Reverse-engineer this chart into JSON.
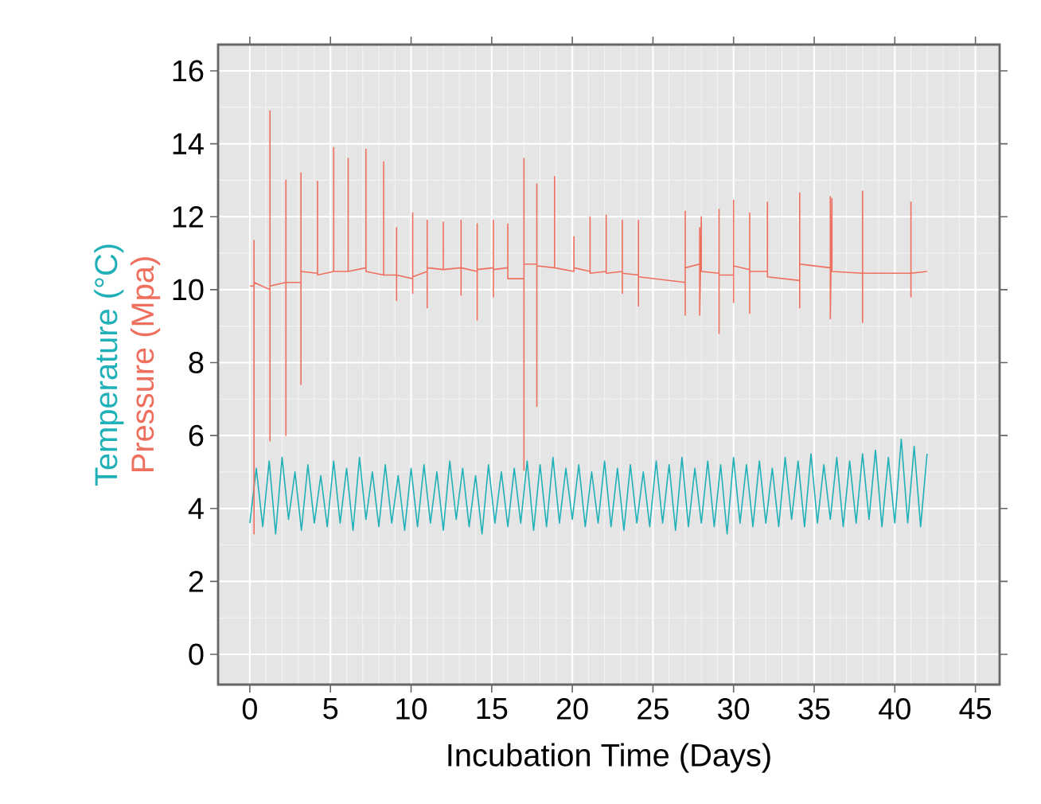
{
  "chart_data": {
    "type": "line",
    "xlabel": "Incubation Time (Days)",
    "xlim": [
      -1.97,
      46.5
    ],
    "ylim": [
      -0.83,
      16.72
    ],
    "xticks": [
      0,
      5,
      10,
      15,
      20,
      25,
      30,
      35,
      40,
      45
    ],
    "yticks": [
      0,
      2,
      4,
      6,
      8,
      10,
      12,
      14,
      16
    ],
    "grid": true,
    "series": [
      {
        "name": "Temperature (°C)",
        "color": "#20b0b8",
        "x": [
          0,
          0.4,
          0.8,
          1.2,
          1.6,
          2.0,
          2.4,
          2.8,
          3.2,
          3.6,
          4.0,
          4.4,
          4.8,
          5.2,
          5.6,
          6.0,
          6.4,
          6.8,
          7.2,
          7.6,
          8.0,
          8.4,
          8.8,
          9.2,
          9.6,
          10.0,
          10.4,
          10.8,
          11.2,
          11.6,
          12.0,
          12.4,
          12.8,
          13.2,
          13.6,
          14.0,
          14.4,
          14.8,
          15.2,
          15.6,
          16.0,
          16.4,
          16.8,
          17.2,
          17.6,
          18.0,
          18.4,
          18.8,
          19.2,
          19.6,
          20.0,
          20.4,
          20.8,
          21.2,
          21.6,
          22.0,
          22.4,
          22.8,
          23.2,
          23.6,
          24.0,
          24.4,
          24.8,
          25.2,
          25.6,
          26.0,
          26.4,
          26.8,
          27.2,
          27.6,
          28.0,
          28.4,
          28.8,
          29.2,
          29.6,
          30.0,
          30.4,
          30.8,
          31.2,
          31.6,
          32.0,
          32.4,
          32.8,
          33.2,
          33.6,
          34.0,
          34.4,
          34.8,
          35.2,
          35.6,
          36.0,
          36.4,
          36.8,
          37.2,
          37.6,
          38.0,
          38.4,
          38.8,
          39.2,
          39.6,
          40.0,
          40.4,
          40.8,
          41.2,
          41.6,
          42.0
        ],
        "values": [
          3.6,
          5.1,
          3.5,
          5.3,
          3.3,
          5.4,
          3.7,
          5.0,
          3.4,
          5.2,
          3.6,
          4.9,
          3.5,
          5.3,
          3.6,
          5.1,
          3.4,
          5.4,
          3.7,
          5.0,
          3.5,
          5.2,
          3.6,
          4.9,
          3.4,
          5.1,
          3.5,
          5.2,
          3.6,
          5.0,
          3.4,
          5.3,
          3.7,
          5.1,
          3.5,
          4.9,
          3.3,
          5.2,
          3.6,
          5.0,
          3.5,
          5.1,
          3.6,
          5.3,
          3.4,
          5.2,
          3.5,
          5.4,
          3.6,
          5.1,
          3.7,
          5.2,
          3.5,
          5.0,
          3.6,
          5.3,
          3.5,
          5.1,
          3.4,
          5.2,
          3.6,
          5.0,
          3.5,
          5.3,
          3.6,
          5.2,
          3.4,
          5.4,
          3.5,
          5.1,
          3.6,
          5.3,
          3.5,
          5.2,
          3.3,
          5.4,
          3.6,
          5.2,
          3.5,
          5.3,
          3.6,
          5.1,
          3.5,
          5.4,
          3.7,
          5.3,
          3.5,
          5.5,
          3.6,
          5.2,
          3.7,
          5.4,
          3.5,
          5.3,
          3.6,
          5.5,
          3.7,
          5.6,
          3.5,
          5.4,
          3.6,
          5.9,
          3.6,
          5.7,
          3.5,
          5.5
        ]
      },
      {
        "name": "Pressure (Mpa)",
        "color": "#ef6f5e",
        "x": [
          0,
          0.26,
          0.26,
          0.26,
          0.26,
          1.25,
          1.25,
          1.25,
          1.25,
          2.24,
          2.24,
          2.24,
          2.24,
          3.17,
          3.17,
          3.17,
          3.17,
          4.2,
          4.2,
          4.2,
          5.2,
          5.2,
          5.2,
          6.1,
          6.1,
          6.1,
          7.2,
          7.2,
          7.2,
          8.3,
          8.3,
          8.3,
          9.1,
          9.1,
          9.1,
          9.1,
          10.1,
          10.1,
          10.1,
          10.1,
          11.0,
          11.0,
          11.0,
          11.0,
          12.0,
          12.0,
          12.0,
          13.1,
          13.1,
          13.1,
          13.1,
          14.1,
          14.1,
          14.1,
          14.1,
          15.1,
          15.1,
          15.1,
          15.1,
          16.0,
          16.0,
          16.0,
          17.0,
          17.0,
          17.0,
          17.0,
          17.8,
          17.8,
          17.8,
          17.8,
          18.9,
          18.9,
          18.9,
          20.1,
          20.1,
          20.1,
          21.1,
          21.1,
          21.1,
          22.1,
          22.1,
          22.1,
          23.1,
          23.1,
          23.1,
          23.1,
          24.1,
          24.1,
          24.1,
          24.1,
          27.0,
          27.0,
          27.0,
          27.0,
          27.9,
          27.9,
          27.9,
          28.0,
          28.0,
          29.1,
          29.1,
          29.1,
          29.1,
          30.0,
          30.0,
          30.0,
          30.0,
          31.0,
          31.0,
          31.0,
          31.0,
          32.1,
          32.1,
          32.1,
          34.1,
          34.1,
          34.1,
          34.1,
          36.0,
          36.0,
          36.0,
          36.1,
          36.1,
          38.0,
          38.0,
          38.0,
          38.0,
          41.0,
          41.0,
          41.0,
          41.0,
          42.0
        ],
        "values": [
          10.1,
          10.1,
          11.35,
          3.3,
          10.2,
          10.0,
          14.9,
          5.85,
          10.1,
          10.2,
          13.0,
          6.0,
          10.2,
          10.2,
          13.2,
          7.4,
          10.5,
          10.45,
          12.97,
          10.4,
          10.5,
          13.9,
          10.5,
          10.5,
          13.6,
          10.5,
          10.6,
          13.85,
          10.5,
          10.4,
          13.5,
          10.4,
          10.4,
          11.7,
          9.7,
          10.4,
          10.3,
          12.1,
          9.9,
          10.35,
          10.5,
          11.9,
          9.5,
          10.6,
          10.55,
          11.85,
          10.55,
          10.6,
          11.9,
          9.85,
          10.6,
          10.5,
          11.8,
          9.17,
          10.55,
          10.6,
          11.9,
          9.8,
          10.55,
          10.6,
          11.8,
          10.3,
          10.3,
          13.6,
          5.05,
          10.7,
          10.7,
          12.9,
          6.8,
          10.65,
          10.6,
          13.1,
          10.6,
          10.5,
          11.45,
          10.6,
          10.5,
          12.0,
          10.45,
          10.5,
          12.05,
          10.45,
          10.5,
          11.9,
          9.9,
          10.45,
          10.4,
          11.9,
          9.55,
          10.35,
          10.2,
          12.15,
          9.3,
          10.6,
          10.7,
          11.7,
          9.3,
          12.0,
          10.5,
          10.45,
          12.2,
          8.8,
          10.4,
          10.4,
          12.45,
          9.65,
          10.65,
          10.55,
          12.1,
          9.35,
          10.5,
          10.5,
          12.4,
          10.35,
          10.25,
          12.65,
          9.5,
          10.7,
          10.6,
          12.55,
          9.2,
          12.5,
          10.5,
          10.45,
          12.7,
          9.1,
          10.45,
          10.45,
          12.4,
          9.8,
          10.45,
          10.5
        ]
      }
    ]
  }
}
